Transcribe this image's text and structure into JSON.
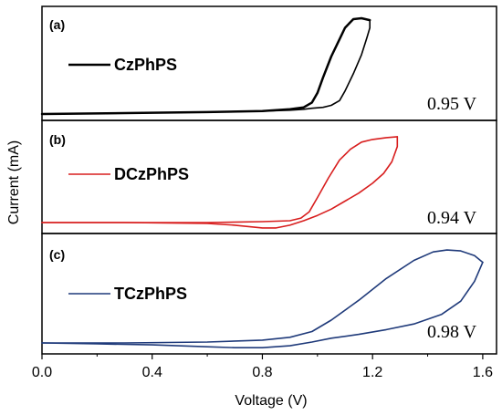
{
  "chart_data": {
    "type": "line",
    "xlabel": "Voltage (V)",
    "ylabel": "Current (mA)",
    "xlim": [
      0.0,
      1.65
    ],
    "xticks": [
      "0.0",
      "0.4",
      "0.8",
      "1.2",
      "1.6"
    ],
    "xtick_values": [
      0.0,
      0.4,
      0.8,
      1.2,
      1.6
    ],
    "panels": [
      {
        "label": "(a)",
        "legend": "CzPhPS",
        "color": "#000000",
        "annotation": "0.95 V",
        "ylim": [
          0,
          1
        ],
        "forward": {
          "x": [
            0.0,
            0.3,
            0.6,
            0.8,
            0.9,
            0.95,
            0.98,
            1.0,
            1.02,
            1.05,
            1.08,
            1.1,
            1.13,
            1.16,
            1.19
          ],
          "y": [
            0.0,
            0.01,
            0.02,
            0.03,
            0.05,
            0.07,
            0.12,
            0.22,
            0.38,
            0.6,
            0.78,
            0.9,
            0.99,
            1.0,
            0.98
          ]
        },
        "reverse": {
          "x": [
            1.19,
            1.19,
            1.18,
            1.16,
            1.13,
            1.1,
            1.08,
            1.05,
            1.02,
            0.98,
            0.95,
            0.9,
            0.8,
            0.6,
            0.3,
            0.0
          ],
          "y": [
            0.98,
            0.9,
            0.8,
            0.62,
            0.42,
            0.24,
            0.14,
            0.09,
            0.07,
            0.06,
            0.05,
            0.04,
            0.03,
            0.02,
            0.01,
            0.0
          ]
        }
      },
      {
        "label": "(b)",
        "legend": "DCzPhPS",
        "color": "#d81e1e",
        "annotation": "0.94 V",
        "ylim": [
          -0.1,
          1
        ],
        "forward": {
          "x": [
            0.0,
            0.3,
            0.6,
            0.8,
            0.9,
            0.94,
            0.97,
            1.0,
            1.04,
            1.08,
            1.12,
            1.16,
            1.2,
            1.25,
            1.29
          ],
          "y": [
            0.0,
            0.0,
            0.0,
            0.01,
            0.02,
            0.05,
            0.12,
            0.28,
            0.5,
            0.7,
            0.82,
            0.9,
            0.93,
            0.95,
            0.96
          ]
        },
        "reverse": {
          "x": [
            1.29,
            1.29,
            1.27,
            1.24,
            1.2,
            1.15,
            1.1,
            1.05,
            1.0,
            0.95,
            0.9,
            0.85,
            0.8,
            0.7,
            0.6,
            0.3,
            0.0
          ],
          "y": [
            0.96,
            0.85,
            0.68,
            0.55,
            0.44,
            0.33,
            0.24,
            0.15,
            0.08,
            0.02,
            -0.03,
            -0.06,
            -0.06,
            -0.03,
            -0.01,
            0.0,
            0.0
          ]
        }
      },
      {
        "label": "(c)",
        "legend": "TCzPhPS",
        "color": "#1f3a7a",
        "annotation": "0.98 V",
        "ylim": [
          -0.1,
          1
        ],
        "forward": {
          "x": [
            0.0,
            0.3,
            0.6,
            0.8,
            0.9,
            0.98,
            1.05,
            1.15,
            1.25,
            1.35,
            1.42,
            1.47,
            1.52,
            1.57,
            1.6
          ],
          "y": [
            0.0,
            0.0,
            0.01,
            0.03,
            0.06,
            0.12,
            0.24,
            0.45,
            0.68,
            0.87,
            0.96,
            0.98,
            0.97,
            0.92,
            0.85
          ]
        },
        "reverse": {
          "x": [
            1.6,
            1.57,
            1.52,
            1.45,
            1.35,
            1.25,
            1.15,
            1.05,
            0.98,
            0.9,
            0.8,
            0.7,
            0.6,
            0.4,
            0.2,
            0.0
          ],
          "y": [
            0.85,
            0.65,
            0.44,
            0.3,
            0.2,
            0.14,
            0.09,
            0.05,
            0.01,
            -0.03,
            -0.05,
            -0.05,
            -0.04,
            -0.02,
            -0.01,
            0.0
          ]
        }
      }
    ]
  }
}
